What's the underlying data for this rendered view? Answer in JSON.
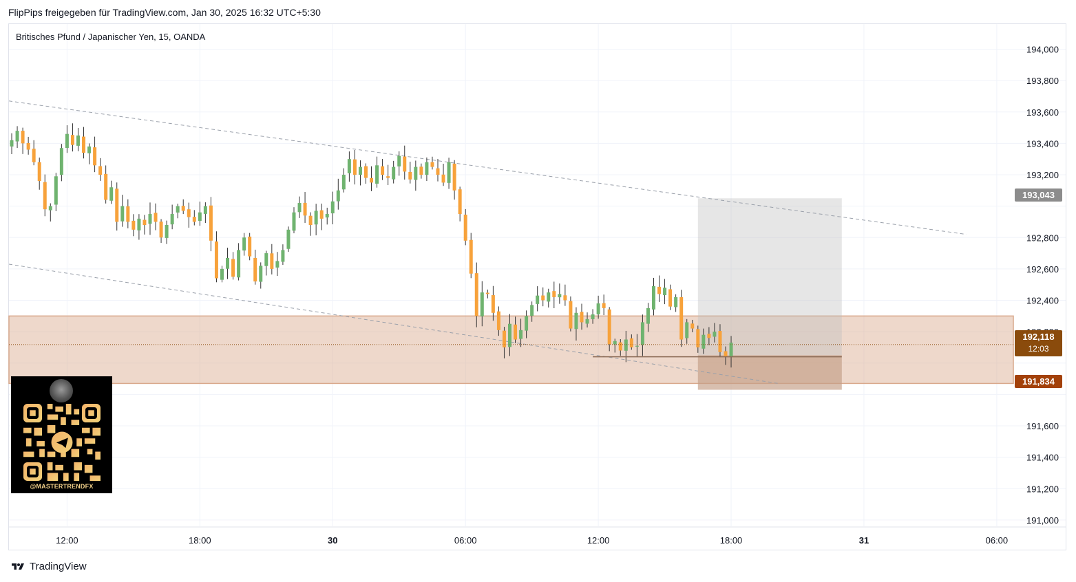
{
  "header": {
    "title": "FlipPips freigegeben für TradingView.com, Jan 30, 2025 16:32 UTC+5:30"
  },
  "symbol": {
    "title": "Britisches Pfund / Japanischer Yen, 15, OANDA"
  },
  "footer": {
    "brand": "TradingView",
    "logo_icon": "tradingview-logo-icon"
  },
  "watermark": {
    "handle": "@MASTERTRENDFX",
    "qr_icon": "qr-code-icon",
    "avatar_icon": "avatar-icon"
  },
  "colors": {
    "up": "#6fb36f",
    "down": "#f7a23b",
    "zone": "#d9a98c",
    "target_box": "#bdbdbd",
    "badge_gray": "#8c8c8c",
    "badge_current": "#8a4b0c",
    "badge_low": "#a3410a"
  },
  "badges": {
    "target": "193,043",
    "current_price": "192,118",
    "countdown": "12:03",
    "stop": "191,834"
  },
  "chart_data": {
    "type": "candlestick",
    "ylim": [
      190.96,
      194.16
    ],
    "y_ticks": [
      {
        "value": 194.0,
        "label": "194,000"
      },
      {
        "value": 193.8,
        "label": "193,800"
      },
      {
        "value": 193.6,
        "label": "193,600"
      },
      {
        "value": 193.4,
        "label": "193,400"
      },
      {
        "value": 193.2,
        "label": "193,200"
      },
      {
        "value": 192.8,
        "label": "192,800"
      },
      {
        "value": 192.6,
        "label": "192,600"
      },
      {
        "value": 192.4,
        "label": "192,400"
      },
      {
        "value": 192.2,
        "label": "192,200"
      },
      {
        "value": 191.6,
        "label": "191,600"
      },
      {
        "value": 191.4,
        "label": "191,400"
      },
      {
        "value": 191.2,
        "label": "191,200"
      },
      {
        "value": 191.0,
        "label": "191,000"
      }
    ],
    "x_ticks": [
      {
        "bar": 10,
        "label": "12:00",
        "bold": false
      },
      {
        "bar": 34,
        "label": "18:00",
        "bold": false
      },
      {
        "bar": 58,
        "label": "30",
        "bold": true
      },
      {
        "bar": 82,
        "label": "06:00",
        "bold": false
      },
      {
        "bar": 106,
        "label": "12:00",
        "bold": false
      },
      {
        "bar": 130,
        "label": "18:00",
        "bold": false
      },
      {
        "bar": 154,
        "label": "31",
        "bold": true
      },
      {
        "bar": 178,
        "label": "06:00",
        "bold": false
      }
    ],
    "x_range": [
      -0.5,
      181
    ],
    "closes": [
      193.42,
      193.48,
      193.4,
      193.36,
      193.28,
      193.16,
      192.98,
      193.0,
      193.19,
      193.37,
      193.46,
      193.39,
      193.45,
      193.34,
      193.38,
      193.26,
      193.2,
      193.04,
      193.12,
      192.9,
      193.0,
      192.9,
      192.85,
      192.92,
      192.88,
      192.95,
      192.9,
      192.8,
      192.88,
      192.95,
      193.0,
      192.97,
      192.93,
      192.9,
      192.96,
      193.0,
      192.78,
      192.54,
      192.6,
      192.67,
      192.55,
      192.72,
      192.8,
      192.68,
      192.52,
      192.62,
      192.7,
      192.6,
      192.65,
      192.72,
      192.85,
      192.96,
      193.02,
      192.94,
      192.88,
      192.97,
      192.92,
      192.95,
      193.03,
      193.1,
      193.2,
      193.3,
      193.2,
      193.25,
      193.18,
      193.15,
      193.26,
      193.2,
      193.18,
      193.25,
      193.32,
      193.22,
      193.17,
      193.25,
      193.2,
      193.28,
      193.25,
      193.2,
      193.15,
      193.28,
      193.1,
      192.95,
      192.78,
      192.57,
      192.3,
      192.45,
      192.44,
      192.32,
      192.21,
      192.1,
      192.25,
      192.15,
      192.21,
      192.3,
      192.37,
      192.43,
      192.4,
      192.45,
      192.42,
      192.44,
      192.4,
      192.22,
      192.32,
      192.26,
      192.28,
      192.31,
      192.38,
      192.35,
      192.12,
      192.14,
      192.08,
      192.15,
      192.1,
      192.11,
      192.26,
      192.35,
      192.49,
      192.44,
      192.48,
      192.36,
      192.42,
      192.15,
      192.26,
      192.22,
      192.1,
      192.18,
      192.16,
      192.2,
      192.07,
      192.04,
      192.13
    ],
    "hlines": [
      {
        "y": 192.04,
        "bar_start": 105,
        "bar_end": 150,
        "color": "#8a6a55"
      }
    ],
    "current_price": 192.118,
    "zone": {
      "y_top": 192.3,
      "y_bottom": 191.87,
      "bar_start": -0.5,
      "bar_end": 181
    },
    "target_box": {
      "y_top": 193.05,
      "y_bottom": 191.83,
      "bar_start": 124,
      "bar_end": 150
    },
    "stop_box": {
      "y_top": 192.05,
      "y_bottom": 191.83,
      "bar_start": 124,
      "bar_end": 150
    },
    "trendlines": [
      {
        "x1": -0.5,
        "y1": 193.67,
        "x2": 172.5,
        "y2": 192.82
      },
      {
        "x1": -0.5,
        "y1": 192.63,
        "x2": 138.5,
        "y2": 191.87
      }
    ]
  }
}
